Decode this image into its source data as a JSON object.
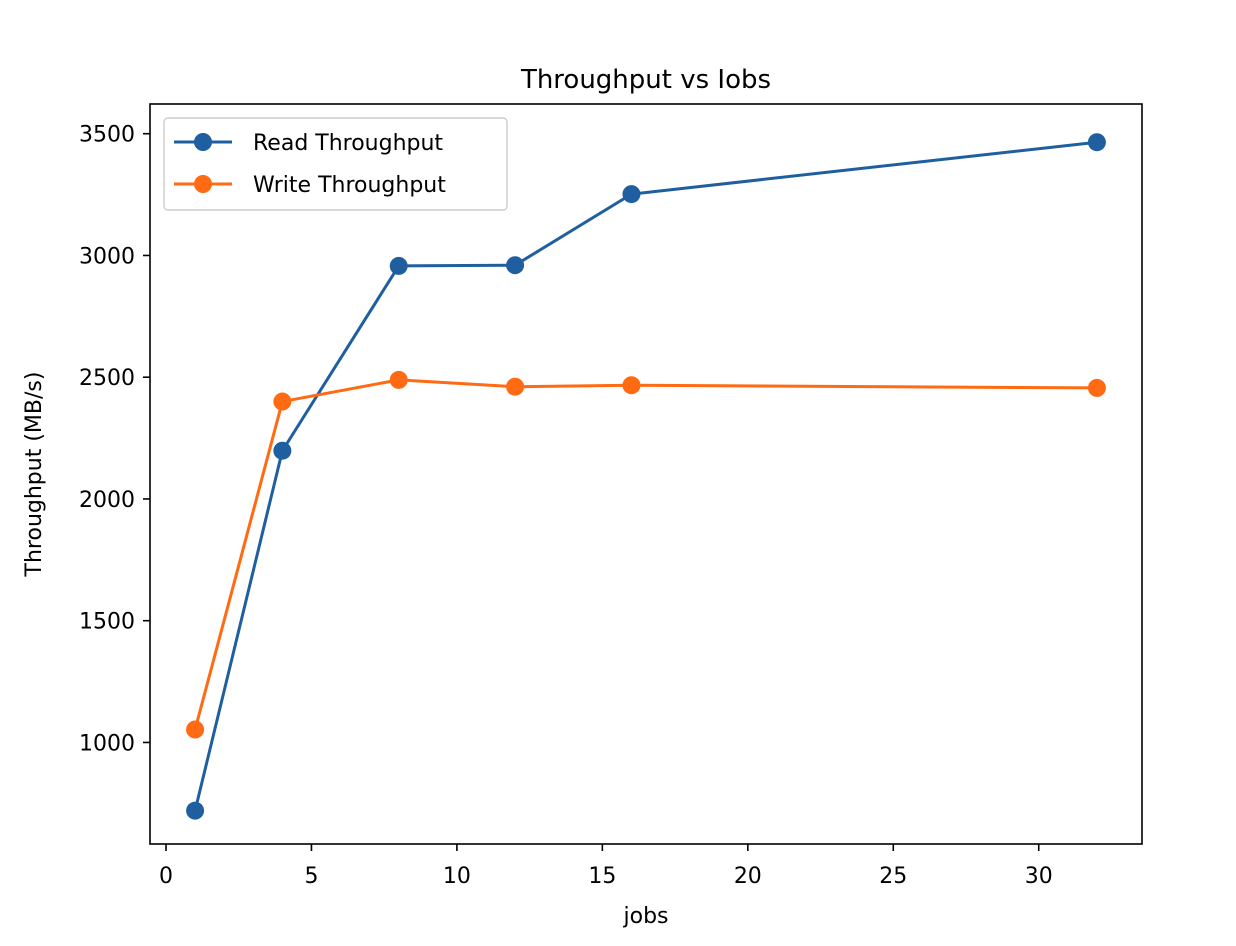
{
  "chart_data": {
    "type": "line",
    "title": "Throughput vs Iobs",
    "xlabel": "jobs",
    "ylabel": "Throughput (MB/s)",
    "x": [
      1,
      4,
      8,
      12,
      16,
      32
    ],
    "series": [
      {
        "name": "Read Throughput",
        "color": "#1f5fa0",
        "marker": "circle",
        "values": [
          720,
          2198,
          2957,
          2960,
          3252,
          3465
        ]
      },
      {
        "name": "Write Throughput",
        "color": "#ff6a13",
        "marker": "circle",
        "values": [
          1053,
          2400,
          2489,
          2461,
          2467,
          2456
        ]
      }
    ],
    "xlim": [
      -0.55,
      33.55
    ],
    "ylim": [
      583,
      3622
    ],
    "xticks": [
      0,
      5,
      10,
      15,
      20,
      25,
      30
    ],
    "yticks": [
      1000,
      1500,
      2000,
      2500,
      3000,
      3500
    ],
    "legend_position": "top-left",
    "grid": false
  }
}
